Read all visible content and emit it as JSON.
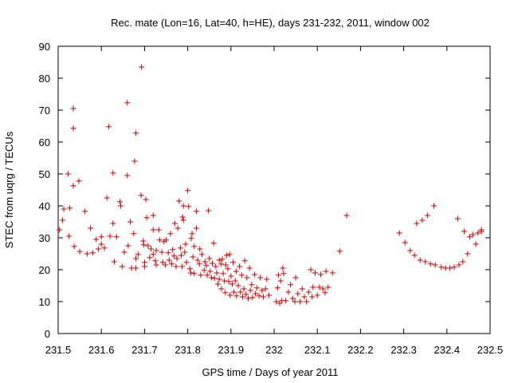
{
  "chart_data": {
    "type": "scatter",
    "title": "Rec. mate (Lon=16, Lat=40, h=HE), days 231-232, 2011, window 002",
    "xlabel": "GPS time / Days of year 2011",
    "ylabel": "STEC from uqrg / TECUs",
    "xlim": [
      231.5,
      232.5
    ],
    "ylim": [
      0,
      90
    ],
    "xticks": [
      231.5,
      231.6,
      231.7,
      231.8,
      231.9,
      232.0,
      232.1,
      232.2,
      232.3,
      232.4,
      232.5
    ],
    "xtick_labels": [
      "231.5",
      "231.6",
      "231.7",
      "231.8",
      "231.9",
      "232",
      "232.1",
      "232.2",
      "232.3",
      "232.4",
      "232.5"
    ],
    "yticks": [
      0,
      10,
      20,
      30,
      40,
      50,
      60,
      70,
      80,
      90
    ],
    "ytick_labels": [
      "0",
      "10",
      "20",
      "30",
      "40",
      "50",
      "60",
      "70",
      "80",
      "90"
    ],
    "marker": "plus",
    "grid": false,
    "series": [
      {
        "name": "STEC",
        "color": "#cc0000",
        "points": [
          [
            231.503,
            32.5
          ],
          [
            231.51,
            35.5
          ],
          [
            231.513,
            39.0
          ],
          [
            231.523,
            50.0
          ],
          [
            231.525,
            30.5
          ],
          [
            231.527,
            39.3
          ],
          [
            231.535,
            70.5
          ],
          [
            231.535,
            64.3
          ],
          [
            231.535,
            46.3
          ],
          [
            231.537,
            27.3
          ],
          [
            231.548,
            47.8
          ],
          [
            231.55,
            25.7
          ],
          [
            231.562,
            38.3
          ],
          [
            231.567,
            25.0
          ],
          [
            231.575,
            33.0
          ],
          [
            231.58,
            25.3
          ],
          [
            231.588,
            29.5
          ],
          [
            231.593,
            26.5
          ],
          [
            231.6,
            28.0
          ],
          [
            231.6,
            30.3
          ],
          [
            231.607,
            26.8
          ],
          [
            231.613,
            42.5
          ],
          [
            231.617,
            64.8
          ],
          [
            231.62,
            30.5
          ],
          [
            231.627,
            34.5
          ],
          [
            231.627,
            50.3
          ],
          [
            231.63,
            22.5
          ],
          [
            231.635,
            30.3
          ],
          [
            231.643,
            41.3
          ],
          [
            231.645,
            40.0
          ],
          [
            231.648,
            21.0
          ],
          [
            231.653,
            25.5
          ],
          [
            231.66,
            72.3
          ],
          [
            231.66,
            49.5
          ],
          [
            231.662,
            27.5
          ],
          [
            231.667,
            35.0
          ],
          [
            231.67,
            20.5
          ],
          [
            231.675,
            31.3
          ],
          [
            231.677,
            54.0
          ],
          [
            231.68,
            62.8
          ],
          [
            231.68,
            23.5
          ],
          [
            231.68,
            20.5
          ],
          [
            231.685,
            24.8
          ],
          [
            231.692,
            43.3
          ],
          [
            231.693,
            83.5
          ],
          [
            231.697,
            29.0
          ],
          [
            231.698,
            27.8
          ],
          [
            231.7,
            22.3
          ],
          [
            231.7,
            21.0
          ],
          [
            231.703,
            42.0
          ],
          [
            231.705,
            36.3
          ],
          [
            231.708,
            27.5
          ],
          [
            231.712,
            23.8
          ],
          [
            231.715,
            26.5
          ],
          [
            231.72,
            37.0
          ],
          [
            231.72,
            32.5
          ],
          [
            231.72,
            24.8
          ],
          [
            231.725,
            22.8
          ],
          [
            231.727,
            21.5
          ],
          [
            231.727,
            26.0
          ],
          [
            231.733,
            32.5
          ],
          [
            231.735,
            29.3
          ],
          [
            231.74,
            25.5
          ],
          [
            231.742,
            22.3
          ],
          [
            231.745,
            28.8
          ],
          [
            231.748,
            21.5
          ],
          [
            231.75,
            29.3
          ],
          [
            231.755,
            25.3
          ],
          [
            231.757,
            23.0
          ],
          [
            231.76,
            31.3
          ],
          [
            231.763,
            21.8
          ],
          [
            231.765,
            26.3
          ],
          [
            231.768,
            24.3
          ],
          [
            231.77,
            34.5
          ],
          [
            231.773,
            21.0
          ],
          [
            231.775,
            23.5
          ],
          [
            231.777,
            33.0
          ],
          [
            231.78,
            41.5
          ],
          [
            231.783,
            26.8
          ],
          [
            231.785,
            24.5
          ],
          [
            231.787,
            21.0
          ],
          [
            231.788,
            36.5
          ],
          [
            231.79,
            40.0
          ],
          [
            231.79,
            35.5
          ],
          [
            231.793,
            25.5
          ],
          [
            231.795,
            28.0
          ],
          [
            231.797,
            22.3
          ],
          [
            231.8,
            44.8
          ],
          [
            231.802,
            39.8
          ],
          [
            231.805,
            20.3
          ],
          [
            231.807,
            19.0
          ],
          [
            231.808,
            29.8
          ],
          [
            231.81,
            31.3
          ],
          [
            231.812,
            24.0
          ],
          [
            231.815,
            27.3
          ],
          [
            231.815,
            18.8
          ],
          [
            231.82,
            38.3
          ],
          [
            231.82,
            33.0
          ],
          [
            231.823,
            23.0
          ],
          [
            231.827,
            21.8
          ],
          [
            231.828,
            26.5
          ],
          [
            231.83,
            18.3
          ],
          [
            231.833,
            24.8
          ],
          [
            231.838,
            19.8
          ],
          [
            231.84,
            22.5
          ],
          [
            231.843,
            21.3
          ],
          [
            231.845,
            18.3
          ],
          [
            231.848,
            38.5
          ],
          [
            231.85,
            23.5
          ],
          [
            231.852,
            19.5
          ],
          [
            231.855,
            17.5
          ],
          [
            231.857,
            22.0
          ],
          [
            231.86,
            28.3
          ],
          [
            231.862,
            17.3
          ],
          [
            231.865,
            21.0
          ],
          [
            231.867,
            19.0
          ],
          [
            231.87,
            15.5
          ],
          [
            231.873,
            23.0
          ],
          [
            231.873,
            17.0
          ],
          [
            231.877,
            21.8
          ],
          [
            231.878,
            14.0
          ],
          [
            231.88,
            23.3
          ],
          [
            231.882,
            18.8
          ],
          [
            231.885,
            16.5
          ],
          [
            231.887,
            12.8
          ],
          [
            231.888,
            21.5
          ],
          [
            231.89,
            24.5
          ],
          [
            231.893,
            20.3
          ],
          [
            231.895,
            16.3
          ],
          [
            231.897,
            24.8
          ],
          [
            231.898,
            12.0
          ],
          [
            231.9,
            18.0
          ],
          [
            231.903,
            15.5
          ],
          [
            231.905,
            22.3
          ],
          [
            231.907,
            13.0
          ],
          [
            231.91,
            16.5
          ],
          [
            231.912,
            19.5
          ],
          [
            231.913,
            11.8
          ],
          [
            231.917,
            15.0
          ],
          [
            231.92,
            21.0
          ],
          [
            231.922,
            13.0
          ],
          [
            231.925,
            18.3
          ],
          [
            231.927,
            11.5
          ],
          [
            231.93,
            14.0
          ],
          [
            231.932,
            22.8
          ],
          [
            231.935,
            12.3
          ],
          [
            231.937,
            17.5
          ],
          [
            231.94,
            11.0
          ],
          [
            231.943,
            20.5
          ],
          [
            231.945,
            13.5
          ],
          [
            231.948,
            15.3
          ],
          [
            231.95,
            11.3
          ],
          [
            231.955,
            18.5
          ],
          [
            231.957,
            12.5
          ],
          [
            231.96,
            14.3
          ],
          [
            231.965,
            11.8
          ],
          [
            231.968,
            17.5
          ],
          [
            231.972,
            13.5
          ],
          [
            231.975,
            11.5
          ],
          [
            231.98,
            14.0
          ],
          [
            231.983,
            17.0
          ],
          [
            231.988,
            12.0
          ],
          [
            232.005,
            10.0
          ],
          [
            232.008,
            14.3
          ],
          [
            232.01,
            18.3
          ],
          [
            232.013,
            9.5
          ],
          [
            232.015,
            16.5
          ],
          [
            232.018,
            10.3
          ],
          [
            232.02,
            20.5
          ],
          [
            232.022,
            18.8
          ],
          [
            232.027,
            10.3
          ],
          [
            232.033,
            13.0
          ],
          [
            232.038,
            15.3
          ],
          [
            232.043,
            11.0
          ],
          [
            232.048,
            10.0
          ],
          [
            232.05,
            17.5
          ],
          [
            232.055,
            12.5
          ],
          [
            232.06,
            10.0
          ],
          [
            232.065,
            14.0
          ],
          [
            232.07,
            11.5
          ],
          [
            232.075,
            10.0
          ],
          [
            232.08,
            13.0
          ],
          [
            232.085,
            20.0
          ],
          [
            232.088,
            11.5
          ],
          [
            232.09,
            14.5
          ],
          [
            232.095,
            19.0
          ],
          [
            232.1,
            12.0
          ],
          [
            232.105,
            14.5
          ],
          [
            232.108,
            18.5
          ],
          [
            232.113,
            14.0
          ],
          [
            232.118,
            12.8
          ],
          [
            232.12,
            19.5
          ],
          [
            232.125,
            14.5
          ],
          [
            232.135,
            19.0
          ],
          [
            232.152,
            25.8
          ],
          [
            232.168,
            37.0
          ],
          [
            232.29,
            31.5
          ],
          [
            232.303,
            28.5
          ],
          [
            232.315,
            26.0
          ],
          [
            232.325,
            24.5
          ],
          [
            232.33,
            34.5
          ],
          [
            232.338,
            23.0
          ],
          [
            232.343,
            35.5
          ],
          [
            232.35,
            22.5
          ],
          [
            232.355,
            37.0
          ],
          [
            232.362,
            21.8
          ],
          [
            232.37,
            40.0
          ],
          [
            232.373,
            21.5
          ],
          [
            232.387,
            20.8
          ],
          [
            232.397,
            20.5
          ],
          [
            232.407,
            20.5
          ],
          [
            232.417,
            20.8
          ],
          [
            232.425,
            36.0
          ],
          [
            232.428,
            21.5
          ],
          [
            232.437,
            22.5
          ],
          [
            232.44,
            32.0
          ],
          [
            232.448,
            25.0
          ],
          [
            232.453,
            30.3
          ],
          [
            232.46,
            31.0
          ],
          [
            232.467,
            28.0
          ],
          [
            232.472,
            31.5
          ],
          [
            232.48,
            32.5
          ],
          [
            232.48,
            32.0
          ]
        ]
      }
    ]
  }
}
